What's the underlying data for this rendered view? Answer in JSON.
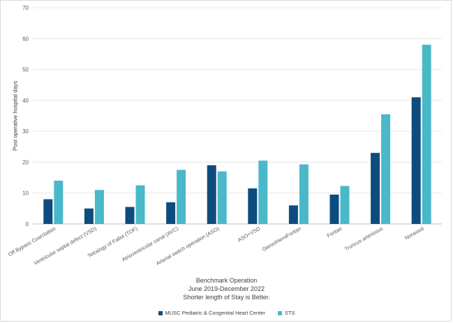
{
  "chart_data": {
    "type": "bar",
    "ylabel": "Post operative hospital days",
    "xlabel": "Benchmark Operation",
    "caption_lines": [
      "Benchmark Operation",
      "June 2019-December 2022",
      "Shorter length of Stay is Better."
    ],
    "ylim": [
      0,
      70
    ],
    "yticks": [
      0,
      10,
      20,
      30,
      40,
      50,
      60,
      70
    ],
    "grid": true,
    "legend_position": "bottom",
    "categories": [
      "Off Bypass Coarctation",
      "Ventricular septal defect (VSD)",
      "Tetralogy of Fallot (TOF)",
      "Atrioventricular canal (AVC)",
      "Arterial switch operation (ASO)",
      "ASO+VSD",
      "Glenn/HemiFontan",
      "Fontan",
      "Truncus arteriosus",
      "Norwood"
    ],
    "series": [
      {
        "name": "MUSC Pediatric & Congenital Heart Center",
        "color": "#0e4c7e",
        "values": [
          8,
          5,
          5.5,
          7,
          19,
          11.5,
          6,
          9.5,
          23,
          41
        ]
      },
      {
        "name": "STS",
        "color": "#4ab8c8",
        "values": [
          14,
          11,
          12.5,
          17.5,
          17,
          20.5,
          19.3,
          12.3,
          35.5,
          58
        ]
      }
    ]
  }
}
